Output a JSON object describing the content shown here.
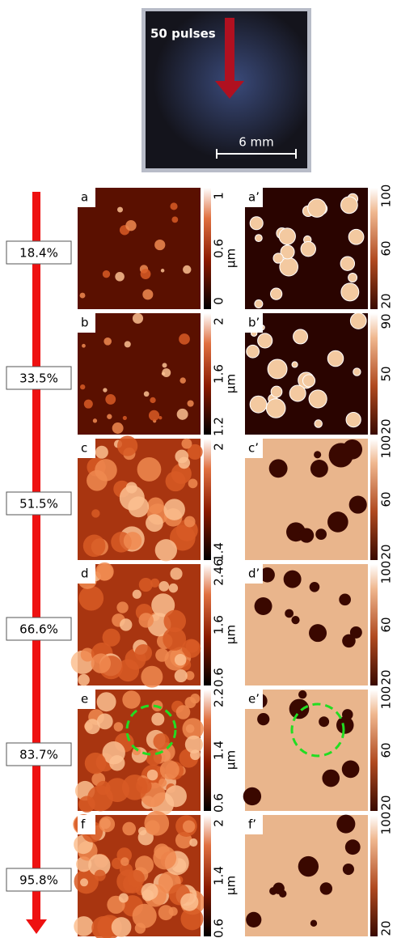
{
  "photo": {
    "label": "50 pulses",
    "scale": "6 mm"
  },
  "rows": [
    {
      "percent": "18.4%",
      "left": {
        "label": "a",
        "ticks": [
          "1",
          "0.6",
          "0"
        ],
        "unit": "µm"
      },
      "right": {
        "label": "a’",
        "ticks": [
          "100",
          "60",
          "20"
        ]
      }
    },
    {
      "percent": "33.5%",
      "left": {
        "label": "b",
        "ticks": [
          "2",
          "1.6",
          "1.2"
        ],
        "unit": "µm"
      },
      "right": {
        "label": "b’",
        "ticks": [
          "90",
          "50",
          "20"
        ]
      }
    },
    {
      "percent": "51.5%",
      "left": {
        "label": "c",
        "ticks": [
          "2",
          "1.4"
        ]
      },
      "right": {
        "label": "c’",
        "ticks": [
          "100",
          "60",
          "20"
        ]
      }
    },
    {
      "percent": "66.6%",
      "left": {
        "label": "d",
        "ticks": [
          "2.46",
          "1.6",
          "0.6"
        ],
        "unit": "µm"
      },
      "right": {
        "label": "d’",
        "ticks": [
          "100",
          "60",
          "20"
        ]
      }
    },
    {
      "percent": "83.7%",
      "left": {
        "label": "e",
        "ticks": [
          "2.2",
          "1.4",
          "0.6"
        ],
        "unit": "µm"
      },
      "right": {
        "label": "e’",
        "ticks": [
          "100",
          "60",
          "20"
        ]
      }
    },
    {
      "percent": "95.8%",
      "left": {
        "label": "f",
        "ticks": [
          "2",
          "1.4",
          "0.6"
        ],
        "unit": "µm"
      },
      "right": {
        "label": "f’",
        "ticks": [
          "100",
          "20"
        ]
      }
    }
  ]
}
